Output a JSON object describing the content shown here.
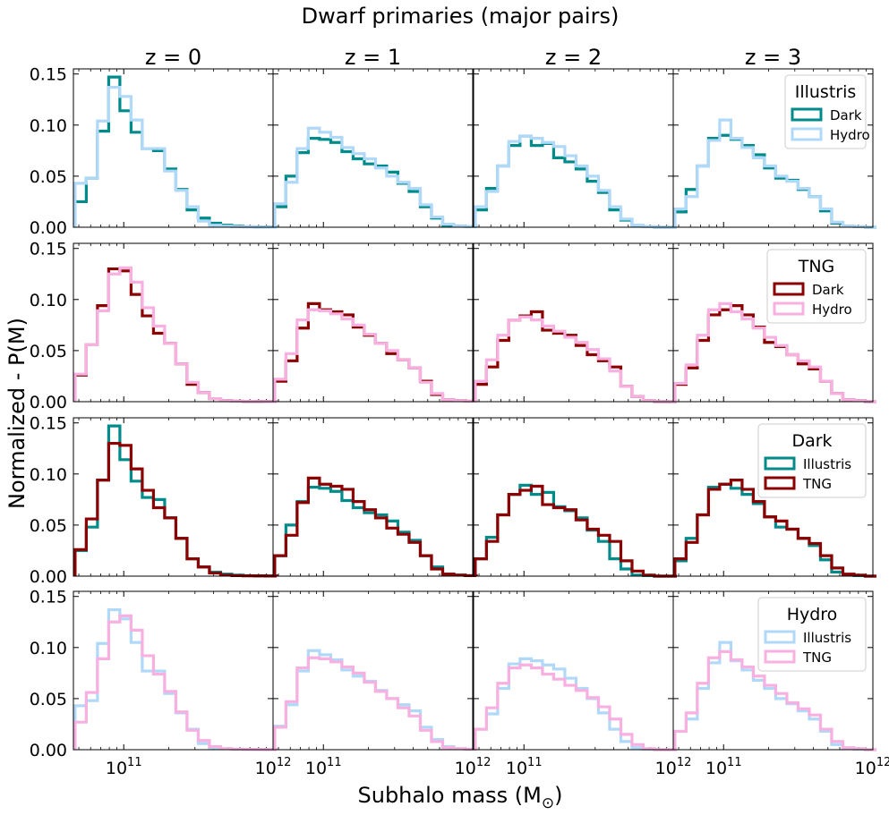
{
  "figure": {
    "title": "Dwarf primaries (major pairs)",
    "xlabel": "Subhalo mass (M",
    "xlabel_sub": "⊙",
    "xlabel_close": ")",
    "ylabel": "Normalized - P(M)"
  },
  "columns": [
    "z = 0",
    "z = 1",
    "z = 2",
    "z = 3"
  ],
  "x_axis": {
    "scale": "log",
    "range": [
      46000000000.0,
      1000000000000.0
    ],
    "ticks": [
      {
        "base": "10",
        "exp": "11"
      },
      {
        "base": "10",
        "exp": "12"
      }
    ]
  },
  "y_axis": {
    "range": [
      0,
      0.155
    ],
    "ticks": [
      "0.00",
      "0.05",
      "0.10",
      "0.15"
    ]
  },
  "bin_edges_log10": [
    10.674,
    10.749,
    10.824,
    10.899,
    10.974,
    11.049,
    11.124,
    11.199,
    11.274,
    11.349,
    11.424,
    11.499,
    11.574,
    11.649,
    11.724,
    11.799,
    11.874,
    11.949,
    12.024
  ],
  "colors": {
    "illustris_dark": "#008b8b",
    "illustris_hydro": "#b0d8f8",
    "tng_dark": "#8b0000",
    "tng_hydro": "#f8b0e0"
  },
  "chart_data": {
    "type": "histogram",
    "x_scale": "log",
    "ylim": [
      0,
      0.155
    ],
    "rows": [
      {
        "legend_title": "Illustris",
        "series": [
          {
            "name": "Dark",
            "color": "#008b8b",
            "panels": [
              [
                0.025,
                0.048,
                0.094,
                0.147,
                0.114,
                0.093,
                0.077,
                0.075,
                0.057,
                0.037,
                0.017,
                0.009,
                0.004,
                0.002,
                0.001,
                0.0005,
                0.0003,
                0.0002
              ],
              [
                0.02,
                0.05,
                0.073,
                0.087,
                0.086,
                0.083,
                0.074,
                0.067,
                0.062,
                0.06,
                0.054,
                0.043,
                0.035,
                0.02,
                0.009,
                0.002,
                0.001,
                0.0005
              ],
              [
                0.017,
                0.038,
                0.06,
                0.08,
                0.089,
                0.08,
                0.082,
                0.068,
                0.064,
                0.057,
                0.045,
                0.034,
                0.017,
                0.007,
                0.001,
                0.0005,
                0,
                0
              ],
              [
                0.015,
                0.037,
                0.06,
                0.087,
                0.09,
                0.086,
                0.08,
                0.071,
                0.058,
                0.048,
                0.046,
                0.037,
                0.03,
                0.016,
                0.004,
                0.001,
                0.0005,
                0
              ]
            ]
          },
          {
            "name": "Hydro",
            "color": "#b0d8f8",
            "panels": [
              [
                0.043,
                0.048,
                0.104,
                0.137,
                0.128,
                0.105,
                0.077,
                0.077,
                0.055,
                0.036,
                0.02,
                0.006,
                0.002,
                0.001,
                0.0005,
                0.0003,
                0.0002,
                0.0001
              ],
              [
                0.023,
                0.044,
                0.077,
                0.097,
                0.093,
                0.088,
                0.078,
                0.072,
                0.067,
                0.058,
                0.05,
                0.044,
                0.038,
                0.022,
                0.01,
                0.003,
                0.001,
                0.0005
              ],
              [
                0.02,
                0.035,
                0.06,
                0.084,
                0.089,
                0.087,
                0.083,
                0.079,
                0.07,
                0.06,
                0.05,
                0.036,
                0.02,
                0.008,
                0.002,
                0.0005,
                0,
                0
              ],
              [
                0.018,
                0.03,
                0.06,
                0.085,
                0.105,
                0.087,
                0.078,
                0.068,
                0.06,
                0.05,
                0.045,
                0.038,
                0.03,
                0.018,
                0.005,
                0.001,
                0.0005,
                0
              ]
            ]
          }
        ]
      },
      {
        "legend_title": "TNG",
        "series": [
          {
            "name": "Dark",
            "color": "#8b0000",
            "panels": [
              [
                0.026,
                0.056,
                0.094,
                0.13,
                0.128,
                0.105,
                0.084,
                0.067,
                0.057,
                0.037,
                0.017,
                0.009,
                0.003,
                0.001,
                0.0005,
                0.0003,
                0.0002,
                0.0001
              ],
              [
                0.02,
                0.04,
                0.072,
                0.096,
                0.09,
                0.088,
                0.085,
                0.073,
                0.065,
                0.057,
                0.047,
                0.041,
                0.033,
                0.02,
                0.007,
                0.002,
                0.001,
                0.0005
              ],
              [
                0.017,
                0.034,
                0.06,
                0.08,
                0.084,
                0.088,
                0.07,
                0.067,
                0.065,
                0.055,
                0.046,
                0.04,
                0.034,
                0.015,
                0.005,
                0.001,
                0,
                0
              ],
              [
                0.017,
                0.033,
                0.06,
                0.085,
                0.09,
                0.094,
                0.085,
                0.073,
                0.058,
                0.054,
                0.046,
                0.037,
                0.032,
                0.02,
                0.008,
                0.002,
                0.001,
                0
              ]
            ]
          },
          {
            "name": "Hydro",
            "color": "#f8b0e0",
            "panels": [
              [
                0.027,
                0.056,
                0.089,
                0.125,
                0.131,
                0.117,
                0.092,
                0.074,
                0.057,
                0.037,
                0.019,
                0.009,
                0.003,
                0.001,
                0.0005,
                0.0003,
                0.0002,
                0.0001
              ],
              [
                0.022,
                0.047,
                0.08,
                0.09,
                0.089,
                0.086,
                0.081,
                0.075,
                0.066,
                0.057,
                0.05,
                0.041,
                0.033,
                0.019,
                0.008,
                0.002,
                0.001,
                0.0005
              ],
              [
                0.02,
                0.041,
                0.065,
                0.08,
                0.083,
                0.08,
                0.074,
                0.069,
                0.063,
                0.058,
                0.051,
                0.042,
                0.03,
                0.015,
                0.005,
                0.001,
                0,
                0
              ],
              [
                0.018,
                0.036,
                0.065,
                0.09,
                0.096,
                0.088,
                0.081,
                0.072,
                0.063,
                0.055,
                0.046,
                0.04,
                0.034,
                0.02,
                0.008,
                0.002,
                0.001,
                0
              ]
            ]
          }
        ]
      },
      {
        "legend_title": "Dark",
        "series": [
          {
            "name": "Illustris",
            "color": "#008b8b",
            "panels": [
              [
                0.025,
                0.048,
                0.094,
                0.147,
                0.114,
                0.093,
                0.077,
                0.075,
                0.057,
                0.037,
                0.017,
                0.009,
                0.004,
                0.002,
                0.001,
                0.0005,
                0.0003,
                0.0002
              ],
              [
                0.02,
                0.05,
                0.073,
                0.087,
                0.086,
                0.083,
                0.074,
                0.067,
                0.062,
                0.06,
                0.054,
                0.043,
                0.035,
                0.02,
                0.009,
                0.002,
                0.001,
                0.0005
              ],
              [
                0.017,
                0.038,
                0.06,
                0.08,
                0.089,
                0.08,
                0.082,
                0.068,
                0.064,
                0.057,
                0.045,
                0.034,
                0.017,
                0.007,
                0.001,
                0.0005,
                0,
                0
              ],
              [
                0.015,
                0.037,
                0.06,
                0.087,
                0.09,
                0.086,
                0.08,
                0.071,
                0.058,
                0.048,
                0.046,
                0.037,
                0.03,
                0.016,
                0.004,
                0.001,
                0.0005,
                0
              ]
            ]
          },
          {
            "name": "TNG",
            "color": "#8b0000",
            "panels": [
              [
                0.026,
                0.056,
                0.094,
                0.13,
                0.128,
                0.105,
                0.084,
                0.067,
                0.057,
                0.037,
                0.017,
                0.009,
                0.003,
                0.001,
                0.0005,
                0.0003,
                0.0002,
                0.0001
              ],
              [
                0.02,
                0.04,
                0.072,
                0.096,
                0.09,
                0.088,
                0.085,
                0.073,
                0.065,
                0.057,
                0.047,
                0.041,
                0.033,
                0.02,
                0.007,
                0.002,
                0.001,
                0.0005
              ],
              [
                0.017,
                0.034,
                0.06,
                0.08,
                0.084,
                0.088,
                0.07,
                0.067,
                0.065,
                0.055,
                0.046,
                0.04,
                0.034,
                0.015,
                0.005,
                0.001,
                0,
                0
              ],
              [
                0.017,
                0.033,
                0.06,
                0.085,
                0.09,
                0.094,
                0.085,
                0.073,
                0.058,
                0.054,
                0.046,
                0.037,
                0.032,
                0.02,
                0.008,
                0.002,
                0.001,
                0
              ]
            ]
          }
        ]
      },
      {
        "legend_title": "Hydro",
        "series": [
          {
            "name": "Illustris",
            "color": "#b0d8f8",
            "panels": [
              [
                0.043,
                0.048,
                0.104,
                0.137,
                0.128,
                0.105,
                0.077,
                0.077,
                0.055,
                0.036,
                0.02,
                0.006,
                0.002,
                0.001,
                0.0005,
                0.0003,
                0.0002,
                0.0001
              ],
              [
                0.023,
                0.044,
                0.077,
                0.097,
                0.093,
                0.088,
                0.078,
                0.072,
                0.067,
                0.058,
                0.05,
                0.044,
                0.038,
                0.022,
                0.01,
                0.003,
                0.001,
                0.0005
              ],
              [
                0.02,
                0.035,
                0.06,
                0.084,
                0.089,
                0.087,
                0.083,
                0.079,
                0.07,
                0.06,
                0.05,
                0.036,
                0.02,
                0.008,
                0.002,
                0.0005,
                0,
                0
              ],
              [
                0.018,
                0.03,
                0.06,
                0.085,
                0.105,
                0.087,
                0.078,
                0.068,
                0.06,
                0.05,
                0.045,
                0.038,
                0.03,
                0.018,
                0.005,
                0.001,
                0.0005,
                0
              ]
            ]
          },
          {
            "name": "TNG",
            "color": "#f8b0e0",
            "panels": [
              [
                0.027,
                0.056,
                0.089,
                0.125,
                0.131,
                0.117,
                0.092,
                0.074,
                0.057,
                0.037,
                0.019,
                0.009,
                0.003,
                0.001,
                0.0005,
                0.0003,
                0.0002,
                0.0001
              ],
              [
                0.022,
                0.047,
                0.08,
                0.09,
                0.089,
                0.086,
                0.081,
                0.075,
                0.066,
                0.057,
                0.05,
                0.041,
                0.033,
                0.019,
                0.008,
                0.002,
                0.001,
                0.0005
              ],
              [
                0.02,
                0.041,
                0.065,
                0.08,
                0.083,
                0.08,
                0.074,
                0.069,
                0.063,
                0.058,
                0.051,
                0.042,
                0.03,
                0.015,
                0.005,
                0.001,
                0,
                0
              ],
              [
                0.018,
                0.036,
                0.065,
                0.09,
                0.096,
                0.088,
                0.081,
                0.072,
                0.063,
                0.055,
                0.046,
                0.04,
                0.034,
                0.02,
                0.008,
                0.002,
                0.001,
                0
              ]
            ]
          }
        ]
      }
    ]
  }
}
